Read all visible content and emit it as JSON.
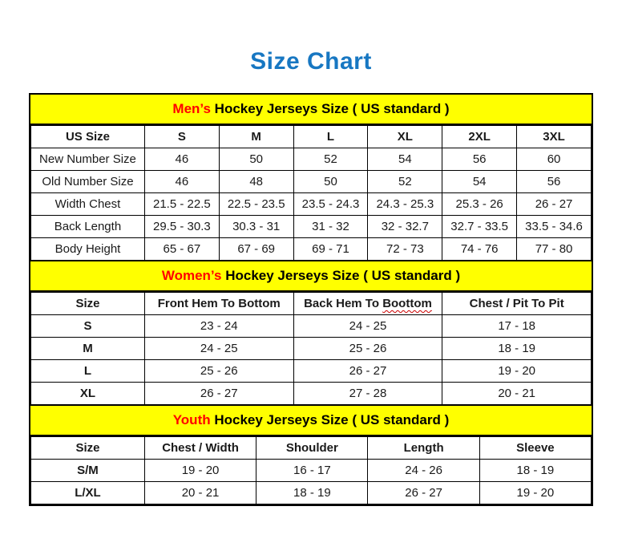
{
  "page": {
    "title": "Size Chart"
  },
  "colors": {
    "title_blue": "#1777c2",
    "band_yellow": "#ffff00",
    "accent_red": "#ff0000",
    "border_black": "#000000",
    "squiggle_red": "#cc0000"
  },
  "sections": [
    {
      "id": "mens",
      "band": {
        "highlight": "Men’s",
        "rest": " Hockey Jerseys Size ( US standard )"
      },
      "col_widths": [
        "20.3%",
        "13.28%",
        "13.28%",
        "13.28%",
        "13.28%",
        "13.28%",
        "13.28%"
      ],
      "columns": [
        "US Size",
        "S",
        "M",
        "L",
        "XL",
        "2XL",
        "3XL"
      ],
      "first_col_bold": false,
      "rows": [
        [
          "New Number Size",
          "46",
          "50",
          "52",
          "54",
          "56",
          "60"
        ],
        [
          "Old Number Size",
          "46",
          "48",
          "50",
          "52",
          "54",
          "56"
        ],
        [
          "Width Chest",
          "21.5 - 22.5",
          "22.5 - 23.5",
          "23.5 - 24.3",
          "24.3 - 25.3",
          "25.3 - 26",
          "26 - 27"
        ],
        [
          "Back Length",
          "29.5 - 30.3",
          "30.3 - 31",
          "31 - 32",
          "32 - 32.7",
          "32.7 - 33.5",
          "33.5 - 34.6"
        ],
        [
          "Body Height",
          "65 - 67",
          "67 - 69",
          "69 - 71",
          "72 - 73",
          "74 - 76",
          "77 - 80"
        ]
      ]
    },
    {
      "id": "womens",
      "band": {
        "highlight": "Women’s",
        "rest": " Hockey Jerseys Size ( US standard )"
      },
      "col_widths": [
        "20.3%",
        "26.57%",
        "26.57%",
        "26.56%"
      ],
      "columns": [
        "Size",
        "Front Hem To Bottom",
        {
          "prefix": "Back Hem To ",
          "squiggle": "Boottom"
        },
        "Chest / Pit To Pit"
      ],
      "first_col_bold": true,
      "rows": [
        [
          "S",
          "23 - 24",
          "24 - 25",
          "17 - 18"
        ],
        [
          "M",
          "24 - 25",
          "25 - 26",
          "18 - 19"
        ],
        [
          "L",
          "25 - 26",
          "26 - 27",
          "19 - 20"
        ],
        [
          "XL",
          "26 - 27",
          "27 - 28",
          "20 - 21"
        ]
      ]
    },
    {
      "id": "youth",
      "band": {
        "highlight": "Youth",
        "rest": " Hockey Jerseys Size ( US standard )"
      },
      "col_widths": [
        "20.3%",
        "19.93%",
        "19.93%",
        "19.93%",
        "19.91%"
      ],
      "columns": [
        "Size",
        "Chest / Width",
        "Shoulder",
        "Length",
        "Sleeve"
      ],
      "first_col_bold": true,
      "rows": [
        [
          "S/M",
          "19 - 20",
          "16 - 17",
          "24 - 26",
          "18 - 19"
        ],
        [
          "L/XL",
          "20 - 21",
          "18 - 19",
          "26 - 27",
          "19 - 20"
        ]
      ]
    }
  ]
}
